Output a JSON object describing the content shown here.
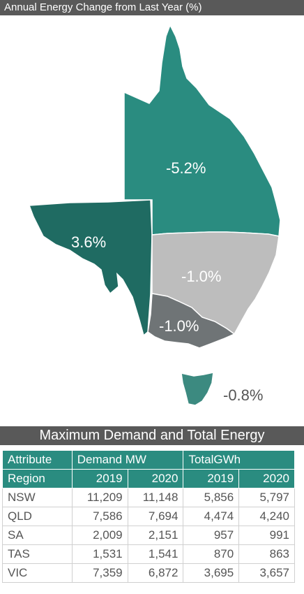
{
  "header": {
    "title": "Annual Energy Change from Last Year (%)"
  },
  "map": {
    "regions": [
      {
        "id": "QLD",
        "change_label": "-5.2%",
        "color": "#2a8c80"
      },
      {
        "id": "SA",
        "change_label": "3.6%",
        "color": "#1f6b62"
      },
      {
        "id": "NSW",
        "change_label": "-1.0%",
        "color": "#bdbdbd"
      },
      {
        "id": "VIC",
        "change_label": "-1.0%",
        "color": "#6f7476"
      },
      {
        "id": "TAS",
        "change_label": "-0.8%",
        "color": "#3c8a80"
      }
    ]
  },
  "table": {
    "title": "Maximum Demand and Total Energy",
    "header_row1": [
      "Attribute",
      "Demand MW",
      "TotalGWh"
    ],
    "header_row2": [
      "Region",
      "2019",
      "2020",
      "2019",
      "2020"
    ],
    "rows": [
      [
        "NSW",
        "11,209",
        "11,148",
        "5,856",
        "5,797"
      ],
      [
        "QLD",
        "7,586",
        "7,694",
        "4,474",
        "4,240"
      ],
      [
        "SA",
        "2,009",
        "2,151",
        "957",
        "991"
      ],
      [
        "TAS",
        "1,531",
        "1,541",
        "870",
        "863"
      ],
      [
        "VIC",
        "7,359",
        "6,872",
        "3,695",
        "3,657"
      ]
    ]
  }
}
